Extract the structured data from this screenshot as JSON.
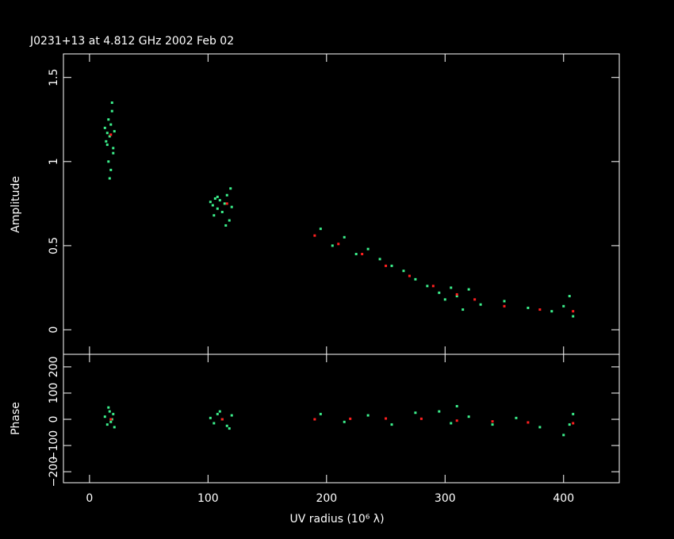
{
  "chart_data": [
    {
      "type": "scatter",
      "title": "J0231+13 at 4.812 GHz 2002 Feb 02",
      "y_label": "Amplitude",
      "xlim": [
        -22,
        447
      ],
      "ylim": [
        -0.146,
        1.64
      ],
      "yticks": [
        0,
        0.5,
        1,
        1.5
      ],
      "series": [
        {
          "color": "#3cf08c",
          "x": [
            13,
            15,
            16,
            17,
            18,
            19,
            20,
            21,
            14,
            18,
            17,
            16,
            19,
            15,
            20,
            102,
            104,
            106,
            108,
            110,
            112,
            114,
            116,
            118,
            120,
            105,
            115,
            119,
            108,
            195,
            205,
            215,
            225,
            235,
            245,
            255,
            265,
            275,
            285,
            295,
            300,
            305,
            310,
            315,
            320,
            330,
            350,
            370,
            390,
            400,
            405,
            408
          ],
          "values": [
            1.2,
            1.1,
            1.25,
            1.15,
            0.95,
            1.3,
            1.05,
            1.18,
            1.12,
            1.22,
            0.9,
            1.0,
            1.35,
            1.17,
            1.08,
            0.76,
            0.74,
            0.78,
            0.72,
            0.77,
            0.7,
            0.75,
            0.8,
            0.65,
            0.73,
            0.68,
            0.62,
            0.84,
            0.79,
            0.6,
            0.5,
            0.55,
            0.45,
            0.48,
            0.42,
            0.38,
            0.35,
            0.3,
            0.26,
            0.22,
            0.18,
            0.25,
            0.2,
            0.12,
            0.24,
            0.15,
            0.17,
            0.13,
            0.11,
            0.14,
            0.2,
            0.08
          ]
        },
        {
          "color": "#ff2020",
          "x": [
            18,
            116,
            190,
            210,
            230,
            250,
            270,
            290,
            310,
            325,
            350,
            380,
            408
          ],
          "values": [
            1.16,
            0.75,
            0.56,
            0.51,
            0.45,
            0.38,
            0.32,
            0.26,
            0.21,
            0.18,
            0.14,
            0.12,
            0.11
          ]
        }
      ]
    },
    {
      "type": "scatter",
      "y_label": "Phase",
      "x_label": "UV radius  (10⁶ λ)",
      "xlim": [
        -22,
        447
      ],
      "xticks": [
        0,
        100,
        200,
        300,
        400
      ],
      "ylim": [
        -242,
        248
      ],
      "yticks": [
        {
          "value": -200,
          "label": "−200"
        },
        {
          "value": -100,
          "label": "−100"
        },
        0,
        100,
        200
      ],
      "series": [
        {
          "color": "#3cf08c",
          "x": [
            13,
            15,
            17,
            19,
            21,
            16,
            18,
            20,
            102,
            105,
            108,
            112,
            116,
            120,
            110,
            118,
            195,
            215,
            235,
            255,
            275,
            295,
            305,
            310,
            320,
            340,
            360,
            380,
            400,
            405,
            408
          ],
          "values": [
            10,
            -20,
            30,
            0,
            -30,
            45,
            -10,
            20,
            5,
            -15,
            20,
            0,
            -25,
            15,
            30,
            -35,
            20,
            -10,
            15,
            -20,
            25,
            30,
            -15,
            50,
            10,
            -20,
            5,
            -30,
            -60,
            -20,
            20
          ]
        },
        {
          "color": "#ff2020",
          "x": [
            18,
            112,
            190,
            220,
            250,
            280,
            310,
            340,
            370,
            408
          ],
          "values": [
            0,
            0,
            0,
            2,
            3,
            2,
            -5,
            -8,
            -12,
            -15
          ]
        }
      ]
    }
  ]
}
